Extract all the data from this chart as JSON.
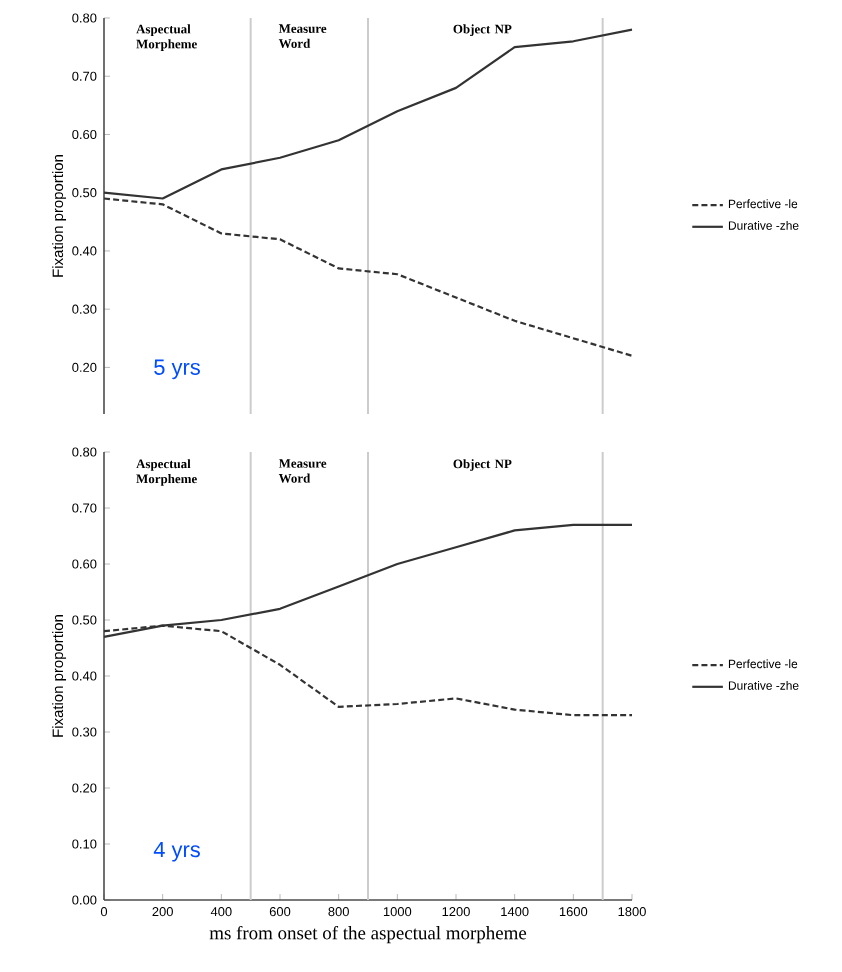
{
  "chart_data": [
    {
      "type": "line",
      "ylabel": "Fixation proportion",
      "x": [
        0,
        200,
        400,
        600,
        800,
        1000,
        1200,
        1400,
        1600,
        1800
      ],
      "xlim": [
        0,
        1800
      ],
      "ylim": [
        0.12,
        0.8
      ],
      "yticks": [
        {
          "value": 0.2,
          "label": "0.20"
        },
        {
          "value": 0.3,
          "label": "0.30"
        },
        {
          "value": 0.4,
          "label": "0.40"
        },
        {
          "value": 0.5,
          "label": "0.50"
        },
        {
          "value": 0.6,
          "label": "0.60"
        },
        {
          "value": 0.7,
          "label": "0.70"
        },
        {
          "value": 0.8,
          "label": "0.80"
        }
      ],
      "tick_labels": "y",
      "legend": "right",
      "series": [
        {
          "name": "Perfective -le",
          "color": "#333333",
          "line_style": "dashed",
          "values": [
            0.49,
            0.48,
            0.43,
            0.42,
            0.37,
            0.36,
            0.32,
            0.28,
            0.25,
            0.22
          ]
        },
        {
          "name": "Durative -zhe",
          "color": "#333333",
          "line_style": "solid",
          "values": [
            0.5,
            0.49,
            0.54,
            0.56,
            0.59,
            0.64,
            0.68,
            0.75,
            0.76,
            0.78
          ]
        }
      ],
      "ref_lines": [
        {
          "axis": "x",
          "value": 500,
          "color": "#cccccc"
        },
        {
          "axis": "x",
          "value": 900,
          "color": "#cccccc"
        },
        {
          "axis": "x",
          "value": 1700,
          "color": "#cccccc"
        }
      ],
      "annotations": [
        "Aspectual Morpheme",
        "Measure Word",
        "Object NP",
        "5 yrs"
      ]
    },
    {
      "type": "line",
      "xlabel": "ms from onset of the aspectual morpheme",
      "ylabel": "Fixation proportion",
      "x": [
        0,
        200,
        400,
        600,
        800,
        1000,
        1200,
        1400,
        1600,
        1800
      ],
      "xlim": [
        0,
        1800
      ],
      "ylim": [
        0,
        0.8
      ],
      "xticks": [
        0,
        200,
        400,
        600,
        800,
        1000,
        1200,
        1400,
        1600,
        1800
      ],
      "yticks": [
        {
          "value": 0,
          "label": "0.00"
        },
        {
          "value": 0.1,
          "label": "0.10"
        },
        {
          "value": 0.2,
          "label": "0.20"
        },
        {
          "value": 0.3,
          "label": "0.30"
        },
        {
          "value": 0.4,
          "label": "0.40"
        },
        {
          "value": 0.5,
          "label": "0.50"
        },
        {
          "value": 0.6,
          "label": "0.60"
        },
        {
          "value": 0.7,
          "label": "0.70"
        },
        {
          "value": 0.8,
          "label": "0.80"
        }
      ],
      "legend": "right",
      "series": [
        {
          "name": "Perfective -le",
          "color": "#333333",
          "line_style": "dashed",
          "values": [
            0.48,
            0.49,
            0.48,
            0.42,
            0.345,
            0.35,
            0.36,
            0.34,
            0.33,
            0.33
          ]
        },
        {
          "name": "Durative -zhe",
          "color": "#333333",
          "line_style": "solid",
          "values": [
            0.47,
            0.49,
            0.5,
            0.52,
            0.56,
            0.6,
            0.63,
            0.66,
            0.67,
            0.67
          ]
        }
      ],
      "ref_lines": [
        {
          "axis": "x",
          "value": 500,
          "color": "#cccccc"
        },
        {
          "axis": "x",
          "value": 900,
          "color": "#cccccc"
        },
        {
          "axis": "x",
          "value": 1700,
          "color": "#cccccc"
        }
      ],
      "annotations": [
        "Aspectual Morpheme",
        "Measure Word",
        "Object NP",
        "4 yrs"
      ]
    }
  ]
}
